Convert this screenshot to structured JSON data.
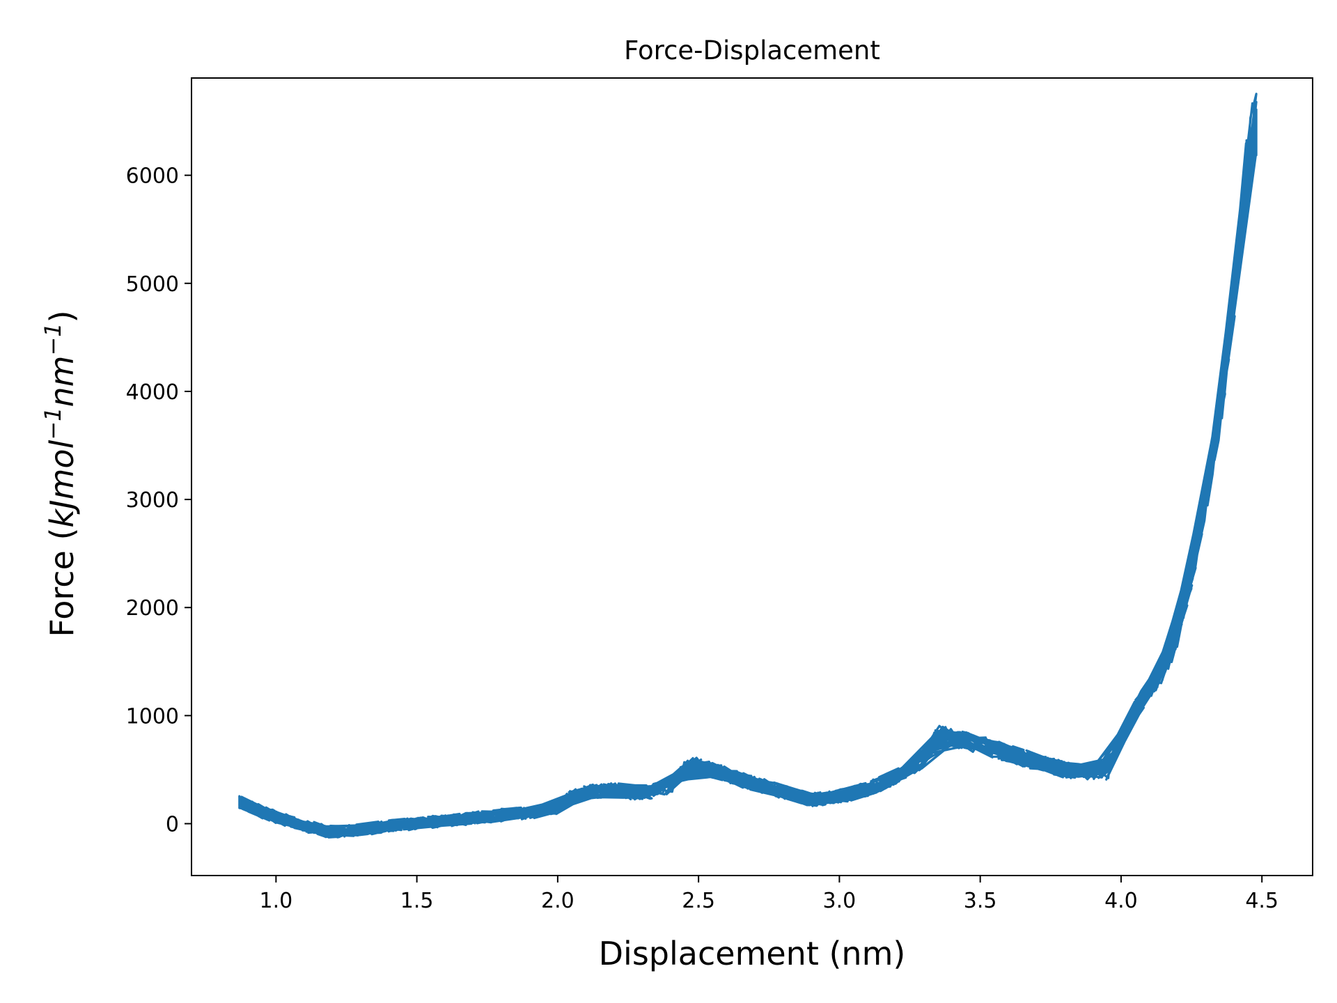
{
  "chart_data": {
    "type": "line",
    "title": "Force-Displacement",
    "xlabel": "Displacement (nm)",
    "ylabel": {
      "prefix": "Force (",
      "unit_italic": "kJmol",
      "sup1": "−1",
      "unit_italic2": "nm",
      "sup2": "−1",
      "suffix": ")"
    },
    "xlim": [
      0.7,
      4.68
    ],
    "ylim": [
      -480,
      6900
    ],
    "xticks": [
      1.0,
      1.5,
      2.0,
      2.5,
      3.0,
      3.5,
      4.0,
      4.5
    ],
    "xtick_labels": [
      "1.0",
      "1.5",
      "2.0",
      "2.5",
      "3.0",
      "3.5",
      "4.0",
      "4.5"
    ],
    "yticks": [
      0,
      1000,
      2000,
      3000,
      4000,
      5000,
      6000
    ],
    "ytick_labels": [
      "0",
      "1000",
      "2000",
      "3000",
      "4000",
      "5000",
      "6000"
    ],
    "grid": false,
    "legend": "none",
    "colors": {
      "series": "#1f77b4",
      "axes": "#000000"
    },
    "series": [
      {
        "values": [
          [
            0.87,
            200
          ],
          [
            0.9,
            160
          ],
          [
            1.0,
            60
          ],
          [
            1.1,
            -20
          ],
          [
            1.2,
            -80
          ],
          [
            1.3,
            -60
          ],
          [
            1.4,
            -20
          ],
          [
            1.5,
            0
          ],
          [
            1.6,
            30
          ],
          [
            1.7,
            50
          ],
          [
            1.8,
            80
          ],
          [
            1.9,
            100
          ],
          [
            2.0,
            150
          ],
          [
            2.05,
            250
          ],
          [
            2.1,
            290
          ],
          [
            2.2,
            310
          ],
          [
            2.3,
            280
          ],
          [
            2.4,
            340
          ],
          [
            2.45,
            520
          ],
          [
            2.5,
            540
          ],
          [
            2.6,
            450
          ],
          [
            2.7,
            370
          ],
          [
            2.8,
            290
          ],
          [
            2.9,
            220
          ],
          [
            3.0,
            250
          ],
          [
            3.1,
            320
          ],
          [
            3.2,
            430
          ],
          [
            3.3,
            600
          ],
          [
            3.35,
            820
          ],
          [
            3.4,
            800
          ],
          [
            3.5,
            730
          ],
          [
            3.6,
            650
          ],
          [
            3.7,
            570
          ],
          [
            3.8,
            500
          ],
          [
            3.9,
            470
          ],
          [
            3.95,
            460
          ],
          [
            4.0,
            800
          ],
          [
            4.05,
            1050
          ],
          [
            4.1,
            1250
          ],
          [
            4.15,
            1400
          ],
          [
            4.2,
            1750
          ],
          [
            4.25,
            2300
          ],
          [
            4.3,
            3000
          ],
          [
            4.35,
            3800
          ],
          [
            4.4,
            4800
          ],
          [
            4.43,
            5600
          ],
          [
            4.45,
            6200
          ],
          [
            4.48,
            6500
          ]
        ]
      }
    ]
  }
}
